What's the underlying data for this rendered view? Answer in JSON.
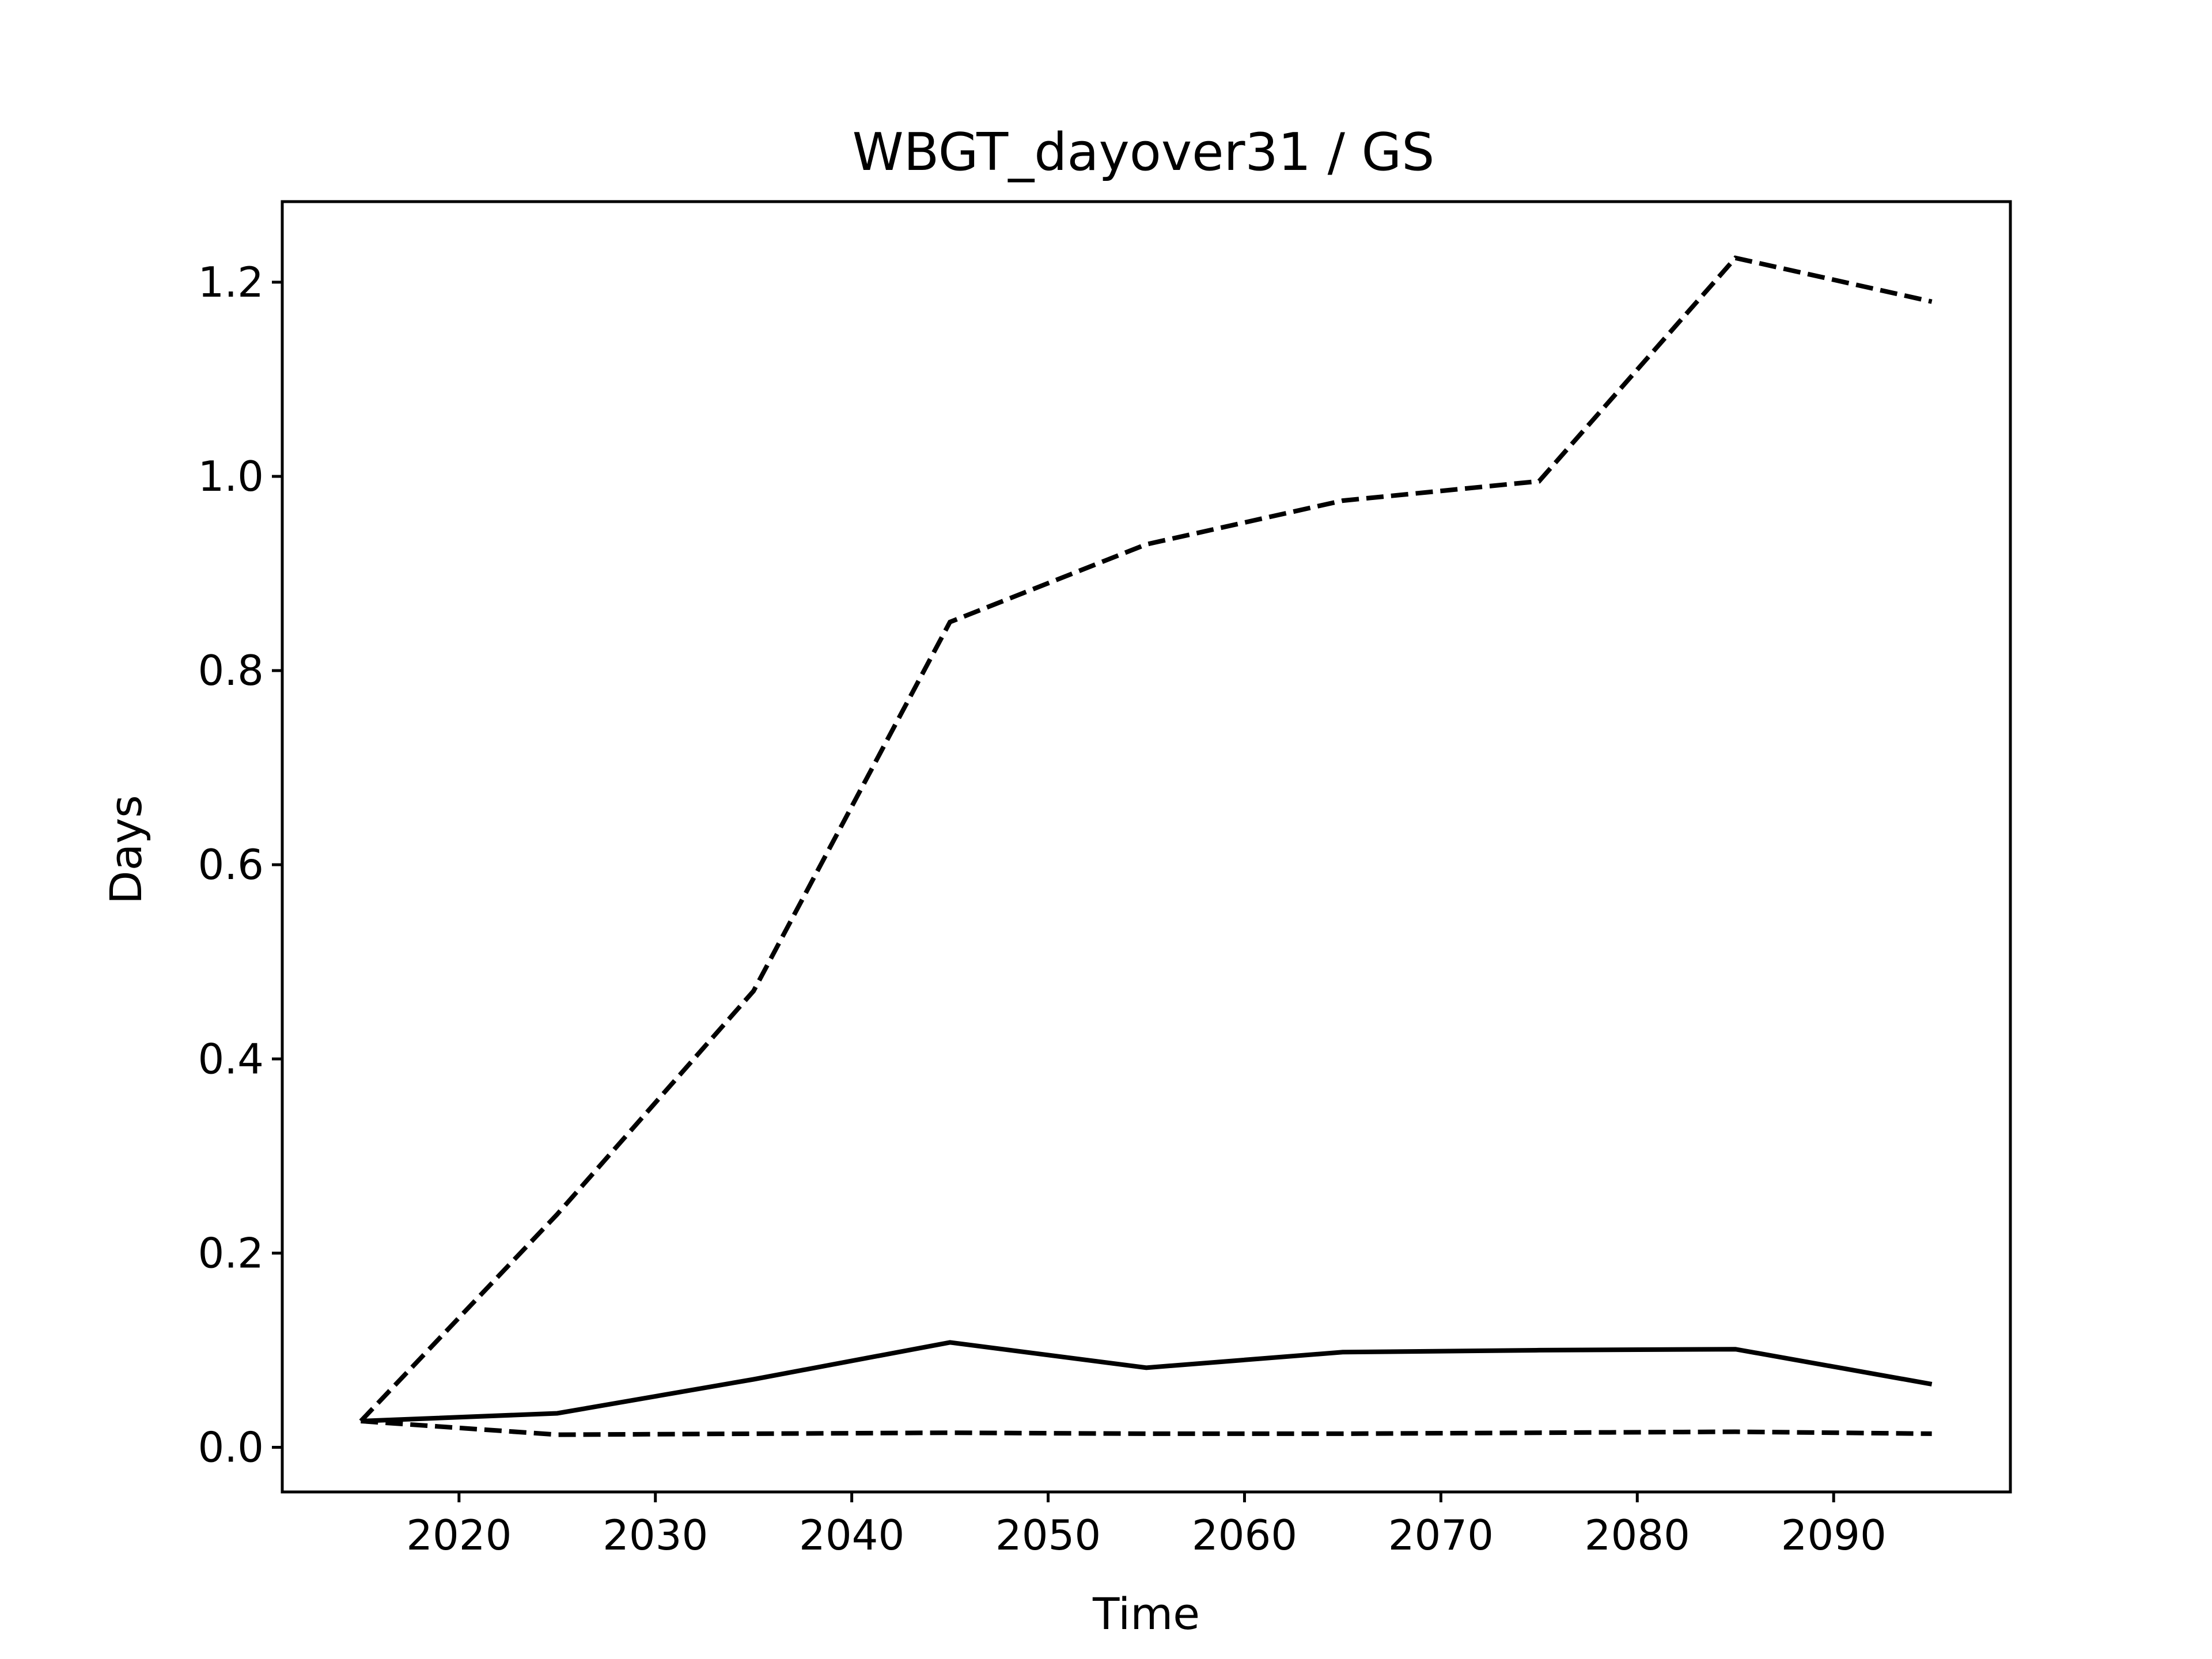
{
  "chart_data": {
    "type": "line",
    "title": "WBGT_dayover31 / GS",
    "xlabel": "Time",
    "ylabel": "Days",
    "xlim": [
      2011,
      2099
    ],
    "ylim": [
      -0.046,
      1.283
    ],
    "xticks": [
      2020,
      2030,
      2040,
      2050,
      2060,
      2070,
      2080,
      2090
    ],
    "yticks": [
      0.0,
      0.2,
      0.4,
      0.6,
      0.8,
      1.0,
      1.2
    ],
    "ytick_labels": [
      "0.0",
      "0.2",
      "0.4",
      "0.6",
      "0.8",
      "1.0",
      "1.2"
    ],
    "grid": false,
    "legend": "none",
    "x": [
      2015,
      2025,
      2035,
      2045,
      2055,
      2065,
      2075,
      2085,
      2095
    ],
    "series": [
      {
        "style": "dashed",
        "color": "#000000",
        "values": [
          0.027,
          0.24,
          0.47,
          0.85,
          0.93,
          0.975,
          0.995,
          1.225,
          1.18
        ]
      },
      {
        "style": "solid",
        "color": "#000000",
        "values": [
          0.027,
          0.035,
          0.07,
          0.108,
          0.082,
          0.098,
          0.1,
          0.101,
          0.065
        ]
      },
      {
        "style": "dashed",
        "color": "#000000",
        "values": [
          0.027,
          0.013,
          0.014,
          0.015,
          0.014,
          0.014,
          0.015,
          0.016,
          0.014
        ]
      }
    ]
  }
}
